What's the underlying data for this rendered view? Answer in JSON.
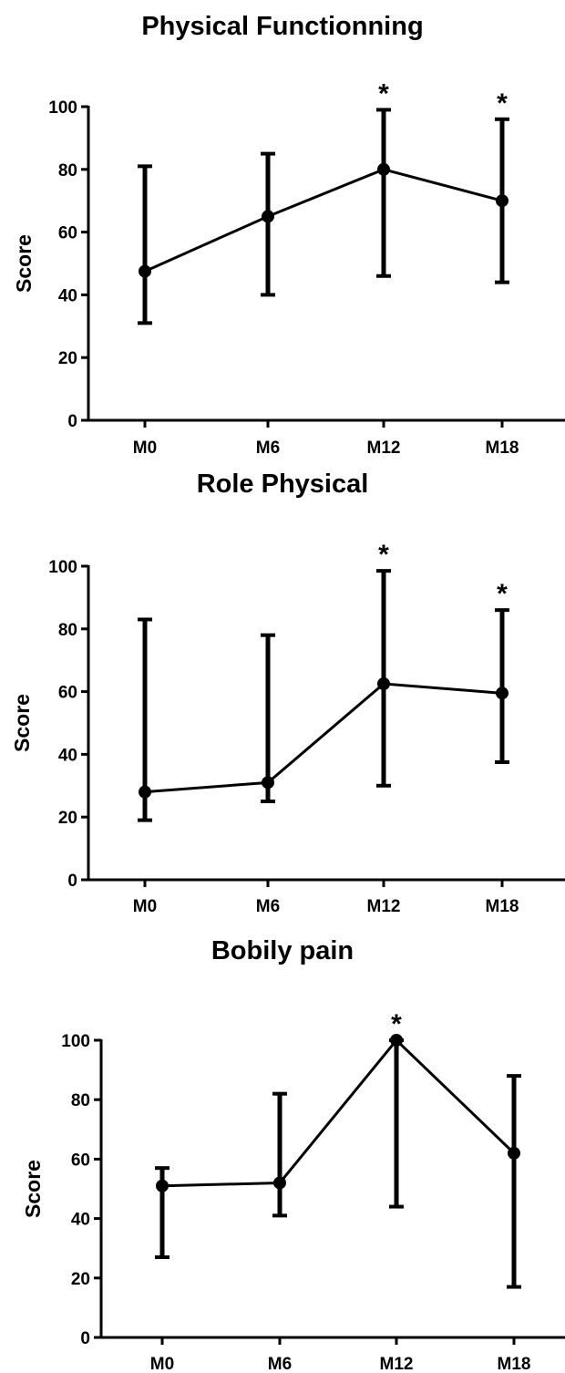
{
  "chart_data": [
    {
      "type": "line",
      "title": "Physical Functionning",
      "ylabel": "Score",
      "xlabel": "",
      "categories": [
        "M0",
        "M6",
        "M12",
        "M18"
      ],
      "ylim": [
        0,
        100
      ],
      "yticks": [
        "0",
        "20",
        "40",
        "60",
        "80",
        "100"
      ],
      "series": [
        {
          "values": [
            47.5,
            65,
            80,
            70
          ],
          "error_low": [
            31,
            40,
            46,
            44
          ],
          "error_high": [
            81,
            85,
            99,
            96
          ]
        }
      ],
      "significance": [
        "",
        "",
        "*",
        "*"
      ]
    },
    {
      "type": "line",
      "title": "Role Physical",
      "ylabel": "Score",
      "xlabel": "",
      "categories": [
        "M0",
        "M6",
        "M12",
        "M18"
      ],
      "ylim": [
        0,
        100
      ],
      "yticks": [
        "0",
        "20",
        "40",
        "60",
        "80",
        "100"
      ],
      "series": [
        {
          "values": [
            28,
            31,
            62.5,
            59.5
          ],
          "error_low": [
            19,
            25,
            30,
            37.5
          ],
          "error_high": [
            83,
            78,
            98.5,
            86
          ]
        }
      ],
      "significance": [
        "",
        "",
        "*",
        "*"
      ]
    },
    {
      "type": "line",
      "title": "Bobily pain",
      "ylabel": "Score",
      "xlabel": "",
      "categories": [
        "M0",
        "M6",
        "M12",
        "M18"
      ],
      "ylim": [
        0,
        100
      ],
      "yticks": [
        "0",
        "20",
        "40",
        "60",
        "80",
        "100"
      ],
      "series": [
        {
          "values": [
            51,
            52,
            100,
            62
          ],
          "error_low": [
            27,
            41,
            44,
            17
          ],
          "error_high": [
            57,
            82,
            100,
            88
          ]
        }
      ],
      "significance": [
        "",
        "",
        "*",
        ""
      ]
    }
  ]
}
